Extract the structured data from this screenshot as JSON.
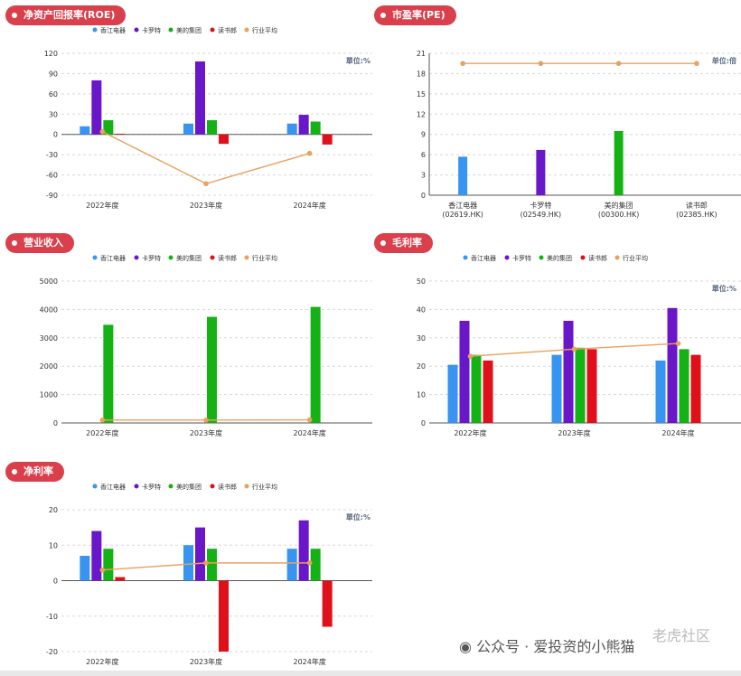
{
  "series_colors": [
    "#3794f0",
    "#6a16c9",
    "#15b215",
    "#e0101a",
    "#e9a15f"
  ],
  "panels": [
    {
      "tag": "净资产回报率(ROE)",
      "unit": "單位:%",
      "chart_data": {
        "type": "bar",
        "categories": [
          "2022年度",
          "2023年度",
          "2024年度"
        ],
        "series": [
          {
            "name": "香江电器",
            "values": [
              12,
              16,
              16
            ]
          },
          {
            "name": "卡罗特",
            "values": [
              80,
              108,
              29
            ]
          },
          {
            "name": "美的集团",
            "values": [
              21,
              21,
              19
            ]
          },
          {
            "name": "读书郎",
            "values": [
              1,
              -14,
              -15
            ]
          }
        ],
        "line": {
          "name": "行业平均",
          "values": [
            4,
            -73,
            -28
          ]
        },
        "yticks": [
          120,
          90,
          60,
          30,
          0,
          -30,
          -60,
          -90
        ],
        "ylim": [
          -90,
          120
        ],
        "legend": "top-center",
        "grid": true
      }
    },
    {
      "tag": "市盈率(PE)",
      "unit": "单位:倍",
      "chart_data": {
        "type": "bar",
        "categories": [
          "香江电器\n(02619.HK)",
          "卡罗特\n(02549.HK)",
          "美的集团\n(00300.HK)",
          "读书郎\n(02385.HK)"
        ],
        "series": [
          {
            "name": "",
            "values": [
              5.7,
              6.7,
              9.5,
              0
            ]
          }
        ],
        "line": {
          "name": "",
          "values": [
            19.5,
            19.5,
            19.5,
            19.5
          ]
        },
        "yticks": [
          21,
          18,
          15,
          12,
          9,
          6,
          3,
          0
        ],
        "ylim": [
          0,
          21
        ],
        "legend": "none",
        "grid": true
      }
    },
    {
      "tag": "营业收入",
      "unit": "",
      "chart_data": {
        "type": "bar",
        "categories": [
          "2022年度",
          "2023年度",
          "2024年度"
        ],
        "series": [
          {
            "name": "香江电器",
            "values": [
              0,
              0,
              0
            ]
          },
          {
            "name": "卡罗特",
            "values": [
              0,
              0,
              0
            ]
          },
          {
            "name": "美的集团",
            "values": [
              3460,
              3740,
              4090
            ]
          },
          {
            "name": "读书郎",
            "values": [
              0,
              0,
              0
            ]
          }
        ],
        "line": {
          "name": "行业平均",
          "values": [
            100,
            100,
            110
          ]
        },
        "yticks": [
          5000,
          4000,
          3000,
          2000,
          1000,
          0
        ],
        "ylim": [
          0,
          5000
        ],
        "legend": "top-center",
        "grid": true
      }
    },
    {
      "tag": "毛利率",
      "unit": "單位:%",
      "chart_data": {
        "type": "bar",
        "categories": [
          "2022年度",
          "2023年度",
          "2024年度"
        ],
        "series": [
          {
            "name": "香江电器",
            "values": [
              20.5,
              24,
              22
            ]
          },
          {
            "name": "卡罗特",
            "values": [
              36,
              36,
              40.5
            ]
          },
          {
            "name": "美的集团",
            "values": [
              24,
              26.5,
              26
            ]
          },
          {
            "name": "读书郎",
            "values": [
              22,
              26,
              24
            ]
          }
        ],
        "line": {
          "name": "行业平均",
          "values": [
            23.5,
            26,
            28
          ]
        },
        "yticks": [
          50,
          40,
          30,
          20,
          10,
          0
        ],
        "ylim": [
          0,
          50
        ],
        "legend": "top-center",
        "grid": true
      }
    },
    {
      "tag": "净利率",
      "unit": "單位:%",
      "chart_data": {
        "type": "bar",
        "categories": [
          "2022年度",
          "2023年度",
          "2024年度"
        ],
        "series": [
          {
            "name": "香江电器",
            "values": [
              7,
              10,
              9
            ]
          },
          {
            "name": "卡罗特",
            "values": [
              14,
              15,
              17
            ]
          },
          {
            "name": "美的集团",
            "values": [
              9,
              9,
              9
            ]
          },
          {
            "name": "读书郎",
            "values": [
              1,
              -20,
              -13
            ]
          }
        ],
        "line": {
          "name": "行业平均",
          "values": [
            3,
            5,
            5
          ]
        },
        "yticks": [
          20,
          10,
          0,
          -10,
          -20
        ],
        "ylim": [
          -20,
          20
        ],
        "legend": "top-center",
        "grid": true
      }
    }
  ],
  "watermark": {
    "text": "公众号 · 爱投资的小熊猫",
    "logo_text": "老虎社区"
  }
}
